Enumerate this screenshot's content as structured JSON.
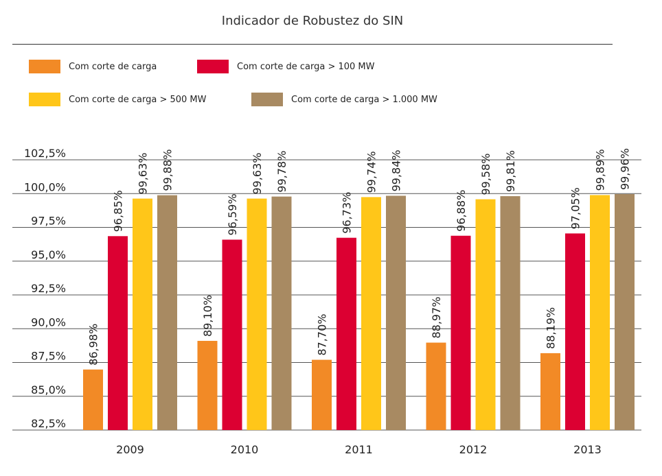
{
  "chart_data": {
    "type": "bar",
    "title": "Indicador de Robustez do SIN",
    "xlabel": "",
    "ylabel": "",
    "categories": [
      "2009",
      "2010",
      "2011",
      "2012",
      "2013"
    ],
    "ylim": [
      82.5,
      102.5
    ],
    "yticks": [
      "102,5%",
      "100,0%",
      "97,5%",
      "95,0%",
      "92,5%",
      "90,0%",
      "87,5%",
      "85,0%",
      "82,5%"
    ],
    "ytick_values": [
      102.5,
      100.0,
      97.5,
      95.0,
      92.5,
      90.0,
      87.5,
      85.0,
      82.5
    ],
    "grid": true,
    "legend_position": "top-left",
    "series": [
      {
        "name": "Com corte de carga",
        "color": "#F28A26",
        "values": [
          86.98,
          89.1,
          87.7,
          88.97,
          88.19
        ],
        "labels": [
          "86,98%",
          "89,10%",
          "87,70%",
          "88,97%",
          "88,19%"
        ]
      },
      {
        "name": "Com corte de carga > 100 MW",
        "color": "#DC0032",
        "values": [
          96.85,
          96.59,
          96.73,
          96.88,
          97.05
        ],
        "labels": [
          "96,85%",
          "96,59%",
          "96,73%",
          "96,88%",
          "97,05%"
        ]
      },
      {
        "name": "Com corte de carga > 500 MW",
        "color": "#FFC619",
        "values": [
          99.63,
          99.63,
          99.74,
          99.58,
          99.89
        ],
        "labels": [
          "99,63%",
          "99,63%",
          "99,74%",
          "99,58%",
          "99,89%"
        ]
      },
      {
        "name": "Com corte de carga > 1.000 MW",
        "color": "#A88A62",
        "values": [
          99.88,
          99.78,
          99.84,
          99.81,
          99.96
        ],
        "labels": [
          "99,88%",
          "99,78%",
          "99,84%",
          "99,81%",
          "99,96%"
        ]
      }
    ]
  }
}
